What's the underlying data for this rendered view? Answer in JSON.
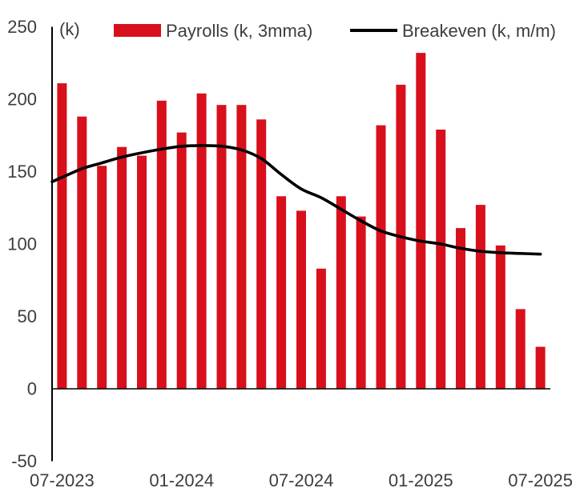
{
  "chart": {
    "unit_label": "(k)",
    "legend": [
      {
        "label": "Payrolls (k, 3mma)",
        "marker": "bar-swatch",
        "color": "#d8101c"
      },
      {
        "label": "Breakeven (k, m/m)",
        "marker": "line-swatch",
        "color": "#000000"
      }
    ]
  },
  "chart_data": {
    "type": "bar+line",
    "title": "",
    "xlabel": "",
    "ylabel": "(k)",
    "x": [
      "07-2023",
      "08-2023",
      "09-2023",
      "10-2023",
      "11-2023",
      "12-2023",
      "01-2024",
      "02-2024",
      "03-2024",
      "04-2024",
      "05-2024",
      "06-2024",
      "07-2024",
      "08-2024",
      "09-2024",
      "10-2024",
      "11-2024",
      "12-2024",
      "01-2025",
      "02-2025",
      "03-2025",
      "04-2025",
      "05-2025",
      "06-2025",
      "07-2025"
    ],
    "series": [
      {
        "name": "Payrolls (k, 3mma)",
        "type": "bar",
        "color": "#d8101c",
        "values": [
          211,
          188,
          154,
          167,
          161,
          199,
          177,
          204,
          196,
          196,
          186,
          133,
          123,
          83,
          133,
          119,
          182,
          210,
          232,
          179,
          111,
          127,
          99,
          55,
          29
        ]
      },
      {
        "name": "Breakeven (k, m/m)",
        "type": "line",
        "color": "#000000",
        "values": [
          146,
          152,
          156,
          160,
          163,
          165.5,
          167.5,
          168,
          167.5,
          165,
          159,
          148,
          138,
          132,
          124,
          116,
          109,
          105,
          102,
          100,
          97,
          95,
          94,
          93.5,
          93
        ]
      }
    ],
    "ylim": [
      -50,
      250
    ],
    "yticks": [
      250,
      200,
      150,
      100,
      50,
      0,
      -50
    ],
    "xticks": [
      {
        "index": 0,
        "label": "07-2023"
      },
      {
        "index": 6,
        "label": "01-2024"
      },
      {
        "index": 12,
        "label": "07-2024"
      },
      {
        "index": 18,
        "label": "01-2025"
      },
      {
        "index": 24,
        "label": "07-2025"
      }
    ],
    "grid": false,
    "legend_position": "top",
    "axis_color": "#000000",
    "tick_text_color": "#3d3d3d"
  }
}
